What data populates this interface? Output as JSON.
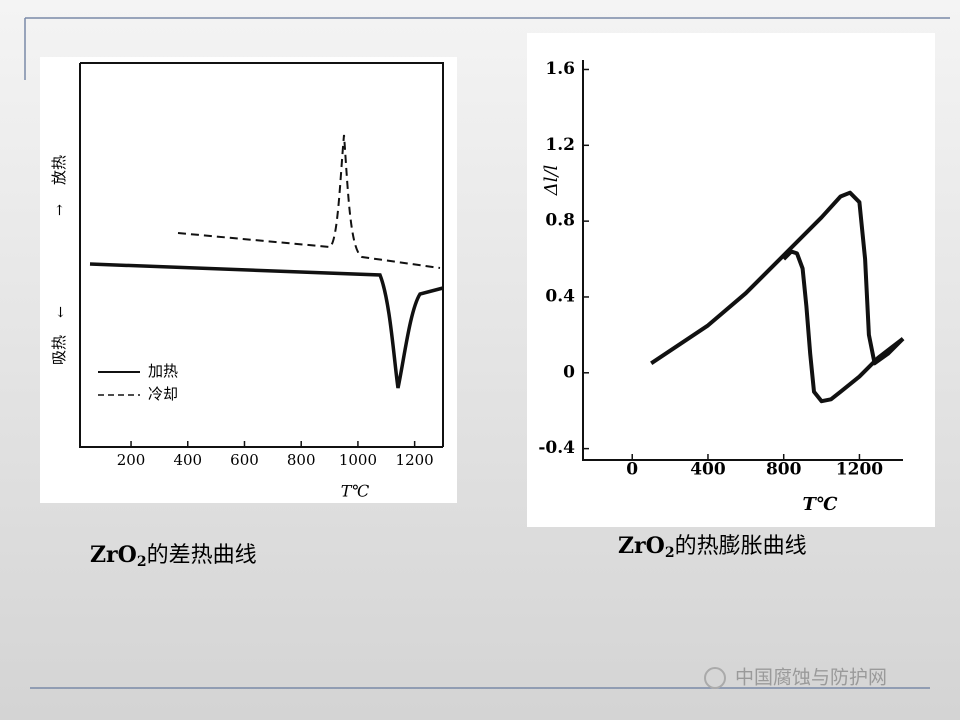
{
  "chart_data": [
    {
      "type": "line",
      "xlabel": "T℃",
      "xlim": [
        20,
        1300
      ],
      "xticks": [
        200,
        400,
        600,
        800,
        1000,
        1200
      ],
      "legend": [
        "加热",
        "冷却"
      ],
      "ylabels": [
        "放热",
        "吸热"
      ]
    },
    {
      "type": "line",
      "xlabel": "T℃",
      "ylabel": "Δl/l",
      "xlim": [
        -260,
        1430
      ],
      "xticks": [
        0,
        400,
        800,
        1200
      ],
      "ylim": [
        -0.46,
        1.65
      ],
      "yticks": [
        -0.4,
        0,
        0.4,
        0.8,
        1.2,
        1.6
      ],
      "series": [
        {
          "color": "#111111",
          "x": [
            100,
            400,
            600,
            800,
            1000,
            1100,
            1150,
            1200,
            1230,
            1250,
            1280,
            1350,
            1430
          ],
          "values": [
            0.05,
            0.25,
            0.42,
            0.62,
            0.82,
            0.93,
            0.95,
            0.9,
            0.6,
            0.2,
            0.05,
            0.1,
            0.18
          ]
        },
        {
          "color": "#111111",
          "x": [
            1430,
            1300,
            1200,
            1100,
            1050,
            1000,
            960,
            940,
            920,
            900,
            870,
            840,
            800
          ],
          "values": [
            0.18,
            0.08,
            -0.02,
            -0.1,
            -0.14,
            -0.15,
            -0.1,
            0.1,
            0.35,
            0.55,
            0.63,
            0.64,
            0.6
          ]
        }
      ]
    }
  ],
  "captions": [
    {
      "formula": "ZrO",
      "subscript": "2",
      "text": "的差热曲线"
    },
    {
      "formula": "ZrO",
      "subscript": "2",
      "text": "的热膨胀曲线"
    }
  ],
  "watermark": "中国腐蚀与防护网"
}
